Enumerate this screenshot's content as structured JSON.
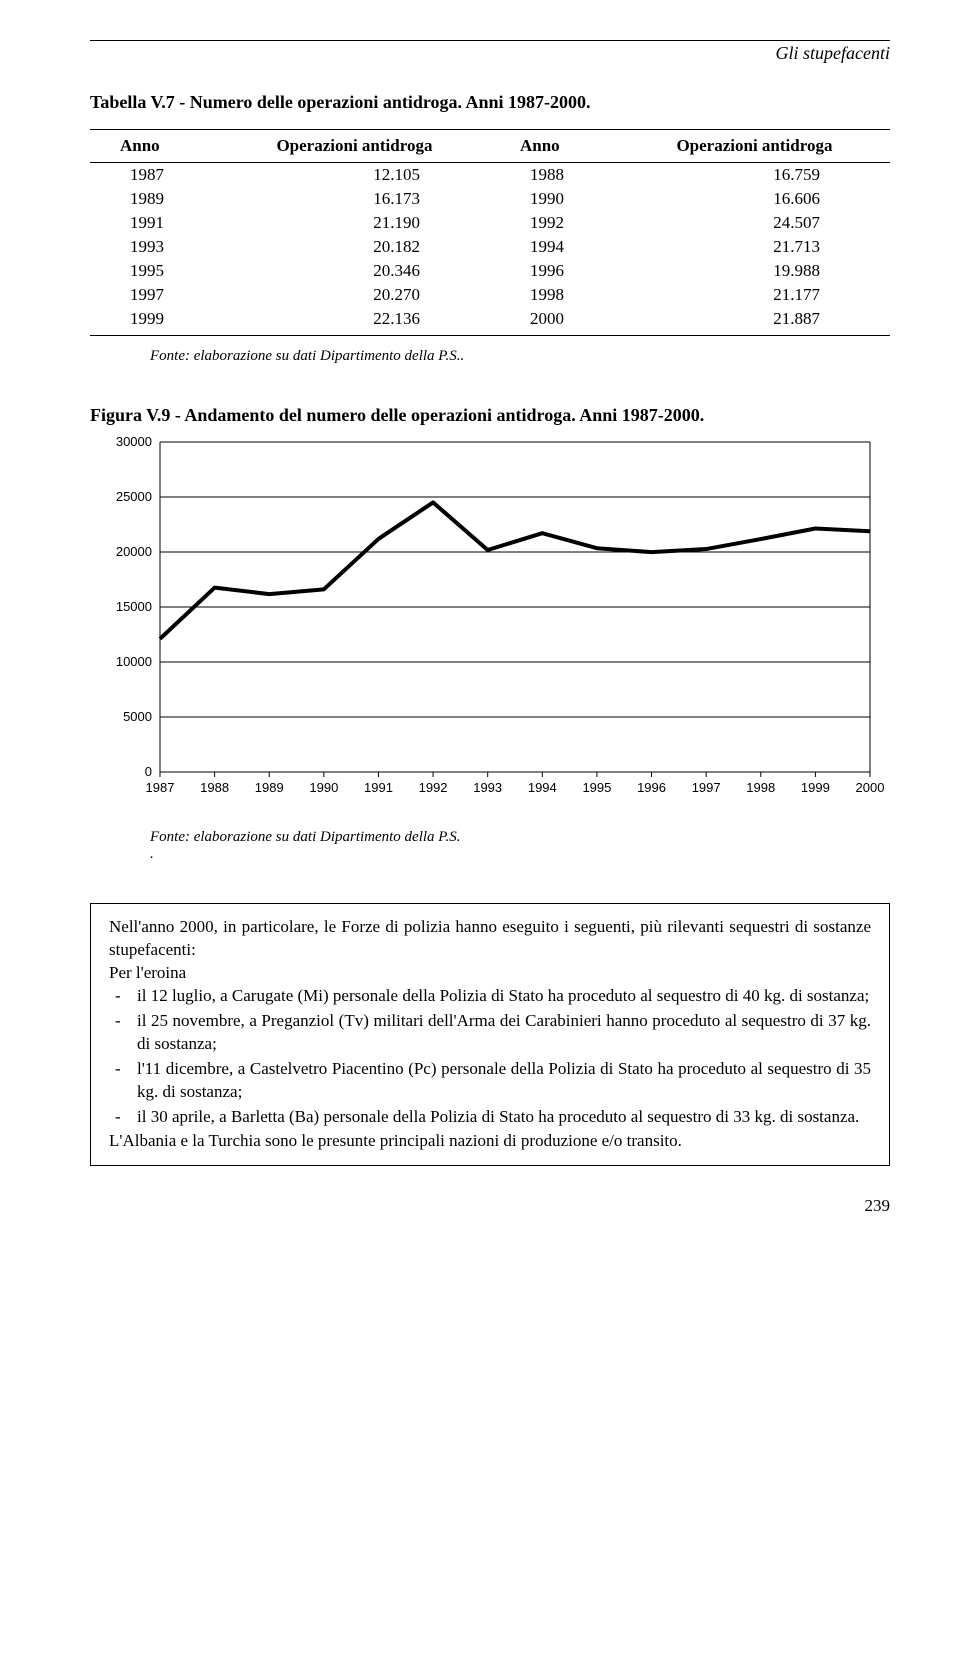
{
  "header": {
    "running_head": "Gli stupefacenti"
  },
  "table": {
    "title": "Tabella V.7 - Numero delle operazioni antidroga. Anni 1987-2000.",
    "columns": [
      "Anno",
      "Operazioni antidroga",
      "Anno",
      "Operazioni antidroga"
    ],
    "rows": [
      [
        "1987",
        "12.105",
        "1988",
        "16.759"
      ],
      [
        "1989",
        "16.173",
        "1990",
        "16.606"
      ],
      [
        "1991",
        "21.190",
        "1992",
        "24.507"
      ],
      [
        "1993",
        "20.182",
        "1994",
        "21.713"
      ],
      [
        "1995",
        "20.346",
        "1996",
        "19.988"
      ],
      [
        "1997",
        "20.270",
        "1998",
        "21.177"
      ],
      [
        "1999",
        "22.136",
        "2000",
        "21.887"
      ]
    ],
    "source": "Fonte: elaborazione su dati Dipartimento della P.S.."
  },
  "chart": {
    "type": "line",
    "title_prefix": "Figura V.9 - ",
    "title_bold": "Andamento del numero delle operazioni antidroga. Anni 1987-2000.",
    "x_labels": [
      "1987",
      "1988",
      "1989",
      "1990",
      "1991",
      "1992",
      "1993",
      "1994",
      "1995",
      "1996",
      "1997",
      "1998",
      "1999",
      "2000"
    ],
    "y_ticks": [
      0,
      5000,
      10000,
      15000,
      20000,
      25000,
      30000
    ],
    "y_tick_labels": [
      "0",
      "5000",
      "10000",
      "15000",
      "20000",
      "25000",
      "30000"
    ],
    "values": [
      12105,
      16759,
      16173,
      16606,
      21190,
      24507,
      20182,
      21713,
      20346,
      19988,
      20270,
      21177,
      22136,
      21887
    ],
    "ylim": [
      0,
      30000
    ],
    "line_color": "#000000",
    "line_width": 4,
    "grid_color": "#000000",
    "background_color": "#ffffff",
    "tick_fontsize": 13,
    "source": "Fonte: elaborazione su dati Dipartimento della P.S.",
    "source_suffix": "."
  },
  "box": {
    "intro": "Nell'anno 2000, in particolare, le Forze di polizia hanno eseguito i seguenti, più rilevanti sequestri di sostanze stupefacenti:",
    "per_label": "Per l'eroina",
    "items": [
      "il 12 luglio, a Carugate (Mi) personale della Polizia di Stato ha proceduto al sequestro di 40 kg. di sostanza;",
      "il 25 novembre, a Preganziol (Tv) militari dell'Arma dei Carabinieri hanno proceduto al sequestro di 37 kg. di sostanza;",
      "l'11 dicembre, a Castelvetro Piacentino (Pc) personale della Polizia di Stato ha proceduto al sequestro di 35 kg. di sostanza;",
      "il 30 aprile, a Barletta (Ba) personale della Polizia di Stato ha proceduto al sequestro di 33 kg. di sostanza."
    ],
    "closing": "L'Albania e la Turchia sono le presunte principali nazioni di produzione e/o transito."
  },
  "footer": {
    "page_number": "239"
  }
}
